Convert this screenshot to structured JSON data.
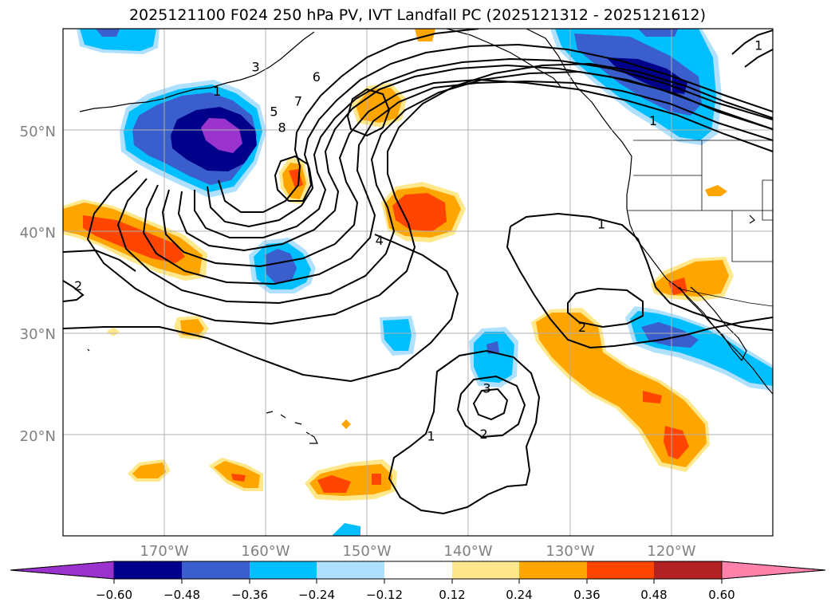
{
  "title": "2025121100 F024 250 hPa PV, IVT Landfall PC (2025121312 - 2025121612)",
  "colors": {
    "neg_060": "#9a32cd",
    "neg_048": "#00008b",
    "neg_036": "#3a5fcd",
    "neg_024": "#00bfff",
    "neg_012": "#afe1ff",
    "zero": "#ffffff",
    "pos_012": "#ffe88c",
    "pos_024": "#ffa500",
    "pos_036": "#ff4500",
    "pos_048": "#b22222",
    "pos_060": "#ff82ab"
  },
  "chart_data": {
    "type": "filled-contour-map",
    "title": "2025121100 F024 250 hPa PV, IVT Landfall PC (2025121312 - 2025121612)",
    "lon_range": [
      -180,
      -110
    ],
    "lat_range": [
      10,
      60
    ],
    "lat_ticks": [
      "20°N",
      "30°N",
      "40°N",
      "50°N"
    ],
    "lon_ticks": [
      "170°W",
      "160°W",
      "150°W",
      "140°W",
      "130°W",
      "120°W"
    ],
    "colorbar_levels": [
      "−0.60",
      "−0.48",
      "−0.36",
      "−0.24",
      "−0.12",
      "0.12",
      "0.24",
      "0.36",
      "0.48",
      "0.60"
    ],
    "contour_labels": [
      {
        "text": "1",
        "lon": -164.8,
        "lat": 53.8
      },
      {
        "text": "3",
        "lon": -161.0,
        "lat": 56.2
      },
      {
        "text": "5",
        "lon": -159.2,
        "lat": 51.8
      },
      {
        "text": "6",
        "lon": -155.0,
        "lat": 55.2
      },
      {
        "text": "7",
        "lon": -156.8,
        "lat": 52.8
      },
      {
        "text": "8",
        "lon": -158.4,
        "lat": 50.2
      },
      {
        "text": "4",
        "lon": -148.8,
        "lat": 39.1
      },
      {
        "text": "1",
        "lon": -121.8,
        "lat": 50.9
      },
      {
        "text": "1",
        "lon": -126.9,
        "lat": 40.7
      },
      {
        "text": "2",
        "lon": -128.8,
        "lat": 30.5
      },
      {
        "text": "3",
        "lon": -138.2,
        "lat": 24.5
      },
      {
        "text": "2",
        "lon": -138.5,
        "lat": 20.0
      },
      {
        "text": "1",
        "lon": -143.7,
        "lat": 19.8
      },
      {
        "text": "1",
        "lon": -111.4,
        "lat": 58.3
      },
      {
        "text": "2",
        "lon": -178.5,
        "lat": 34.6
      }
    ]
  }
}
